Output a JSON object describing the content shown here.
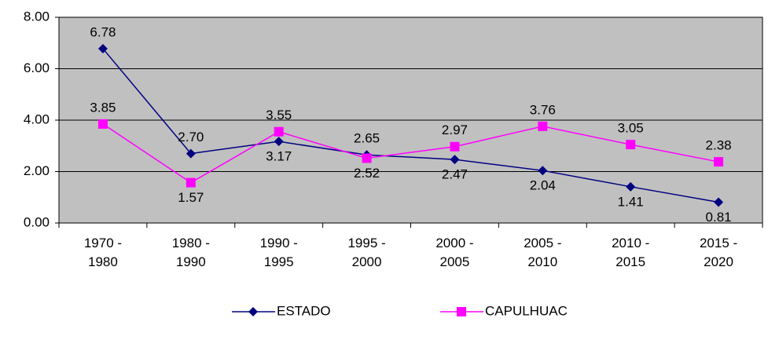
{
  "chart_data": {
    "type": "line",
    "categories": [
      "1970 - 1980",
      "1980 - 1990",
      "1990 - 1995",
      "1995 - 2000",
      "2000 - 2005",
      "2005 - 2010",
      "2010 - 2015",
      "2015 - 2020"
    ],
    "series": [
      {
        "name": "ESTADO",
        "color": "#000080",
        "marker": "diamond",
        "values": [
          6.78,
          2.7,
          3.17,
          2.65,
          2.47,
          2.04,
          1.41,
          0.81
        ],
        "value_labels": [
          "6.78",
          "2.70",
          "3.17",
          "2.65",
          "2.47",
          "2.04",
          "1.41",
          "0.81"
        ]
      },
      {
        "name": "CAPULHUAC",
        "color": "#ff00ff",
        "marker": "square",
        "values": [
          3.85,
          1.57,
          3.55,
          2.52,
          2.97,
          3.76,
          3.05,
          2.38
        ],
        "value_labels": [
          "3.85",
          "1.57",
          "3.55",
          "2.52",
          "2.97",
          "3.76",
          "3.05",
          "2.38"
        ]
      }
    ],
    "ylim": [
      0,
      8
    ],
    "yticks": [
      {
        "value": 0,
        "label": "0.00"
      },
      {
        "value": 2,
        "label": "2.00"
      },
      {
        "value": 4,
        "label": "4.00"
      },
      {
        "value": 6,
        "label": "6.00"
      },
      {
        "value": 8,
        "label": "8.00"
      }
    ],
    "grid": true,
    "legend": "bottom",
    "plot_background": "#c0c0c0"
  }
}
